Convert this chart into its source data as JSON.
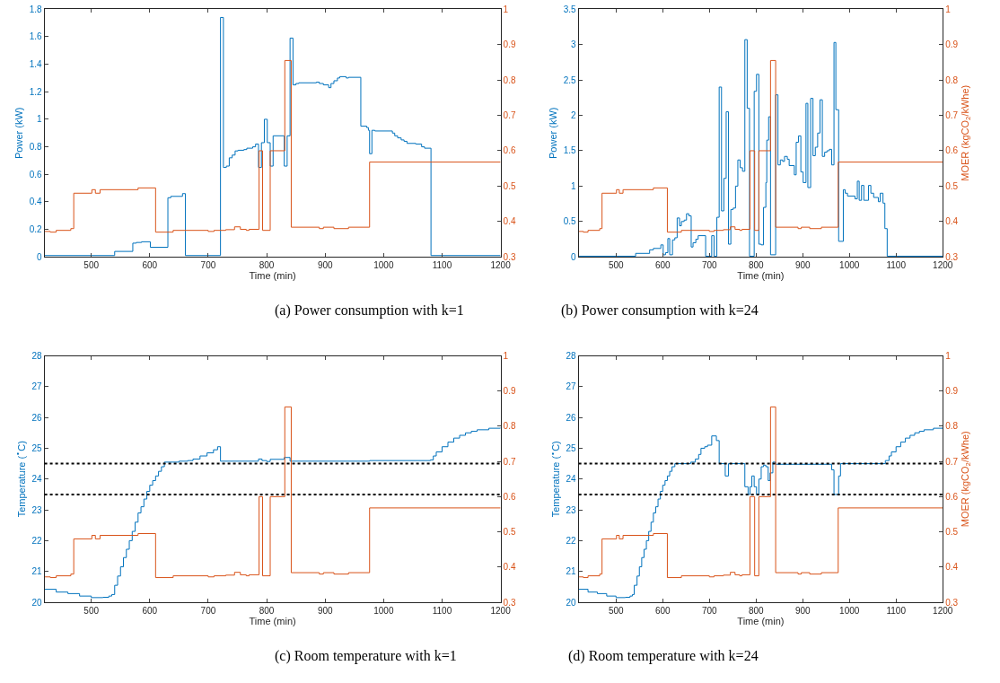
{
  "chart_data": [
    {
      "type": "step",
      "title": "(a) Power consumption with k=1",
      "xlabel": "Time (min)",
      "ylabel": "Power (kW)",
      "xlim": [
        420,
        1200
      ],
      "xticks": [
        500,
        600,
        700,
        800,
        900,
        1000,
        1100,
        1200
      ],
      "ylim": [
        0,
        1.8
      ],
      "yticks": [
        0,
        0.2,
        0.4,
        0.6,
        0.8,
        1,
        1.2,
        1.4,
        1.6,
        1.8
      ],
      "y2lim": [
        0.3,
        1
      ],
      "y2ticks": [
        0.3,
        0.4,
        0.5,
        0.6,
        0.7,
        0.8,
        0.9,
        1
      ],
      "series": [
        {
          "color": "#0072bd",
          "x": [
            420,
            540,
            571,
            577,
            586,
            601,
            631,
            636,
            656,
            661,
            721,
            726,
            731,
            736,
            741,
            746,
            751,
            761,
            766,
            776,
            781,
            786,
            791,
            796,
            801,
            806,
            811,
            830,
            835,
            840,
            845,
            850,
            855,
            885,
            890,
            897,
            906,
            910,
            915,
            921,
            925,
            936,
            940,
            961,
            971,
            974,
            976,
            980,
            985,
            1015,
            1019,
            1024,
            1030,
            1035,
            1040,
            1055,
            1065,
            1070,
            1081,
            1200
          ],
          "values": [
            0.01,
            0.04,
            0.1,
            0.105,
            0.11,
            0.07,
            0.43,
            0.44,
            0.46,
            0.01,
            1.74,
            0.65,
            0.66,
            0.72,
            0.74,
            0.77,
            0.775,
            0.78,
            0.79,
            0.8,
            0.82,
            0.65,
            0.83,
            1.0,
            0.83,
            0.66,
            0.88,
            0.66,
            0.88,
            1.59,
            1.25,
            1.26,
            1.265,
            1.27,
            1.26,
            1.25,
            1.23,
            1.26,
            1.28,
            1.3,
            1.31,
            1.3,
            1.305,
            0.95,
            0.94,
            0.92,
            0.75,
            0.92,
            0.915,
            0.9,
            0.88,
            0.865,
            0.85,
            0.84,
            0.825,
            0.82,
            0.8,
            0.79,
            0.01,
            0.01
          ]
        },
        {
          "color": "#d95319",
          "axis": "y2",
          "x": [
            420,
            430,
            440,
            465,
            470,
            501,
            507,
            515,
            580,
            610,
            640,
            700,
            710,
            730,
            745,
            755,
            765,
            770,
            787,
            793,
            806,
            831,
            842,
            890,
            897,
            915,
            940,
            976,
            1200
          ],
          "values": [
            0.372,
            0.37,
            0.375,
            0.38,
            0.48,
            0.49,
            0.48,
            0.49,
            0.495,
            0.37,
            0.375,
            0.372,
            0.375,
            0.377,
            0.385,
            0.378,
            0.375,
            0.378,
            0.6,
            0.375,
            0.6,
            0.855,
            0.384,
            0.38,
            0.384,
            0.38,
            0.384,
            0.568,
            0.568
          ]
        }
      ]
    },
    {
      "type": "step",
      "title": "(b) Power consumption with k=24",
      "xlabel": "Time (min)",
      "ylabel": "Power (kW)",
      "y2label": "MOER (kgCO$_{2}$/kWhe)",
      "xlim": [
        420,
        1200
      ],
      "xticks": [
        500,
        600,
        700,
        800,
        900,
        1000,
        1100,
        1200
      ],
      "ylim": [
        0,
        3.5
      ],
      "yticks": [
        0,
        0.5,
        1,
        1.5,
        2,
        2.5,
        3,
        3.5
      ],
      "y2lim": [
        0.3,
        1
      ],
      "y2ticks": [
        0.3,
        0.4,
        0.5,
        0.6,
        0.7,
        0.8,
        0.9,
        1
      ],
      "series": [
        {
          "color": "#0072bd",
          "x": [
            420,
            542,
            572,
            580,
            596,
            601,
            606,
            611,
            615,
            621,
            626,
            631,
            636,
            640,
            646,
            651,
            656,
            661,
            665,
            671,
            676,
            692,
            705,
            710,
            716,
            721,
            726,
            731,
            736,
            741,
            746,
            751,
            756,
            761,
            766,
            771,
            776,
            781,
            786,
            796,
            801,
            806,
            811,
            816,
            821,
            823,
            827,
            831,
            842,
            847,
            852,
            857,
            861,
            867,
            871,
            882,
            886,
            891,
            896,
            901,
            907,
            911,
            917,
            922,
            927,
            932,
            937,
            942,
            947,
            952,
            957,
            962,
            967,
            971,
            977,
            987,
            991,
            996,
            1012,
            1017,
            1021,
            1026,
            1031,
            1041,
            1046,
            1052,
            1062,
            1066,
            1072,
            1076,
            1081,
            1200
          ],
          "values": [
            0.01,
            0.05,
            0.1,
            0.12,
            0.17,
            0.03,
            0.06,
            0.26,
            0.03,
            0.24,
            0.27,
            0.55,
            0.44,
            0.5,
            0.52,
            0.61,
            0.58,
            0.14,
            0.2,
            0.25,
            0.3,
            0.01,
            0.3,
            0.01,
            0.56,
            2.4,
            0.65,
            1.11,
            2.05,
            0.18,
            0.67,
            0.69,
            1.0,
            1.37,
            1.26,
            1.21,
            3.07,
            2.1,
            0.01,
            2.34,
            2.58,
            0.18,
            0.17,
            0.7,
            1.05,
            1.65,
            1.98,
            0.03,
            2.29,
            1.3,
            1.37,
            1.35,
            1.42,
            1.38,
            1.29,
            1.16,
            1.62,
            1.71,
            1.2,
            1.05,
            2.17,
            0.98,
            2.24,
            1.43,
            1.55,
            1.75,
            2.22,
            1.42,
            1.48,
            1.5,
            1.52,
            1.3,
            3.03,
            2.08,
            0.22,
            0.95,
            0.9,
            0.86,
            0.82,
            1.07,
            0.8,
            1.01,
            0.8,
            1.01,
            0.9,
            0.84,
            0.78,
            0.9,
            0.76,
            0.4,
            0.01,
            0.01
          ]
        },
        {
          "color": "#d95319",
          "axis": "y2",
          "x": [
            420,
            430,
            440,
            465,
            470,
            501,
            507,
            515,
            580,
            610,
            640,
            700,
            710,
            730,
            745,
            755,
            765,
            770,
            787,
            797,
            806,
            831,
            842,
            890,
            897,
            915,
            940,
            976,
            1200
          ],
          "values": [
            0.372,
            0.37,
            0.375,
            0.38,
            0.48,
            0.49,
            0.48,
            0.49,
            0.495,
            0.37,
            0.375,
            0.372,
            0.375,
            0.377,
            0.385,
            0.378,
            0.375,
            0.378,
            0.6,
            0.375,
            0.6,
            0.855,
            0.384,
            0.38,
            0.384,
            0.38,
            0.384,
            0.568,
            0.568
          ]
        }
      ]
    },
    {
      "type": "step",
      "title": "(c) Room temperature with k=1",
      "xlabel": "Time (min)",
      "ylabel": "Temperature ($^{∘}$C)",
      "xlim": [
        420,
        1200
      ],
      "xticks": [
        500,
        600,
        700,
        800,
        900,
        1000,
        1100,
        1200
      ],
      "ylim": [
        20,
        28
      ],
      "yticks": [
        20,
        21,
        22,
        23,
        24,
        25,
        26,
        27,
        28
      ],
      "y2lim": [
        0.3,
        1
      ],
      "y2ticks": [
        0.3,
        0.4,
        0.5,
        0.6,
        0.7,
        0.8,
        0.9,
        1
      ],
      "ref_lines": [
        {
          "axis": "y",
          "value": 24.5,
          "color": "#000000",
          "line_style": "dotted"
        },
        {
          "axis": "y",
          "value": 23.5,
          "color": "#000000",
          "line_style": "dotted"
        }
      ],
      "series": [
        {
          "color": "#0072bd",
          "x": [
            420,
            440,
            460,
            480,
            500,
            520,
            530,
            535,
            540,
            545,
            550,
            555,
            560,
            565,
            570,
            575,
            580,
            585,
            590,
            595,
            600,
            605,
            610,
            615,
            620,
            625,
            650,
            665,
            674,
            686,
            698,
            709,
            716,
            721,
            786,
            792,
            800,
            806,
            830,
            840,
            976,
            1080,
            1085,
            1090,
            1100,
            1110,
            1120,
            1130,
            1140,
            1150,
            1160,
            1180,
            1200
          ],
          "values": [
            20.42,
            20.33,
            20.28,
            20.2,
            20.15,
            20.16,
            20.2,
            20.25,
            20.55,
            20.85,
            21.15,
            21.45,
            21.72,
            22.0,
            22.3,
            22.6,
            22.9,
            23.1,
            23.35,
            23.6,
            23.8,
            23.95,
            24.1,
            24.25,
            24.4,
            24.55,
            24.58,
            24.6,
            24.65,
            24.75,
            24.85,
            24.95,
            25.05,
            24.58,
            24.65,
            24.6,
            24.57,
            24.64,
            24.7,
            24.58,
            24.6,
            24.62,
            24.75,
            24.88,
            25.05,
            25.2,
            25.33,
            25.42,
            25.5,
            25.55,
            25.6,
            25.65,
            25.67
          ]
        },
        {
          "color": "#d95319",
          "axis": "y2",
          "x": [
            420,
            430,
            440,
            465,
            470,
            501,
            507,
            515,
            580,
            610,
            640,
            700,
            710,
            730,
            745,
            755,
            765,
            770,
            787,
            793,
            806,
            831,
            842,
            890,
            897,
            915,
            940,
            976,
            1200
          ],
          "values": [
            0.372,
            0.37,
            0.375,
            0.38,
            0.48,
            0.49,
            0.48,
            0.49,
            0.495,
            0.37,
            0.375,
            0.372,
            0.375,
            0.377,
            0.385,
            0.378,
            0.375,
            0.378,
            0.6,
            0.375,
            0.6,
            0.855,
            0.384,
            0.38,
            0.384,
            0.38,
            0.384,
            0.568,
            0.568
          ]
        }
      ]
    },
    {
      "type": "step",
      "title": "(d) Room temperature with k=24",
      "xlabel": "Time (min)",
      "ylabel": "Temperature ($^{∘}$C)",
      "y2label": "MOER (kgCO$_{2}$/kWhe)",
      "xlim": [
        420,
        1200
      ],
      "xticks": [
        500,
        600,
        700,
        800,
        900,
        1000,
        1100,
        1200
      ],
      "ylim": [
        20,
        28
      ],
      "yticks": [
        20,
        21,
        22,
        23,
        24,
        25,
        26,
        27,
        28
      ],
      "y2lim": [
        0.3,
        1
      ],
      "y2ticks": [
        0.3,
        0.4,
        0.5,
        0.6,
        0.7,
        0.8,
        0.9,
        1
      ],
      "ref_lines": [
        {
          "axis": "y",
          "value": 24.5,
          "color": "#000000",
          "line_style": "dotted"
        },
        {
          "axis": "y",
          "value": 23.5,
          "color": "#000000",
          "line_style": "dotted"
        }
      ],
      "series": [
        {
          "color": "#0072bd",
          "x": [
            420,
            440,
            460,
            480,
            500,
            520,
            530,
            535,
            539,
            545,
            550,
            555,
            560,
            565,
            570,
            575,
            580,
            585,
            590,
            595,
            600,
            605,
            610,
            615,
            620,
            626,
            660,
            670,
            677,
            682,
            690,
            696,
            705,
            715,
            721,
            734,
            741,
            776,
            783,
            787,
            791,
            796,
            801,
            806,
            811,
            816,
            821,
            826,
            830,
            836,
            842,
            962,
            967,
            977,
            981,
            1077,
            1085,
            1090,
            1100,
            1110,
            1120,
            1130,
            1140,
            1150,
            1160,
            1180,
            1200
          ],
          "values": [
            20.42,
            20.33,
            20.28,
            20.2,
            20.15,
            20.16,
            20.2,
            20.25,
            20.55,
            20.85,
            21.15,
            21.45,
            21.72,
            22.0,
            22.3,
            22.6,
            22.9,
            23.1,
            23.35,
            23.6,
            23.8,
            23.95,
            24.1,
            24.25,
            24.4,
            24.5,
            24.55,
            24.65,
            24.8,
            25.0,
            25.05,
            25.1,
            25.4,
            25.25,
            24.5,
            24.1,
            24.5,
            23.75,
            23.5,
            23.75,
            24.1,
            23.75,
            23.5,
            24.0,
            24.4,
            24.45,
            24.4,
            23.95,
            24.2,
            24.55,
            24.48,
            24.3,
            23.5,
            24.1,
            24.5,
            24.6,
            24.75,
            24.88,
            25.05,
            25.2,
            25.33,
            25.42,
            25.5,
            25.55,
            25.6,
            25.65,
            25.67
          ]
        },
        {
          "color": "#d95319",
          "axis": "y2",
          "x": [
            420,
            430,
            440,
            465,
            470,
            501,
            507,
            515,
            580,
            610,
            640,
            700,
            710,
            730,
            745,
            755,
            765,
            770,
            787,
            797,
            806,
            831,
            842,
            890,
            897,
            915,
            940,
            976,
            1200
          ],
          "values": [
            0.372,
            0.37,
            0.375,
            0.38,
            0.48,
            0.49,
            0.48,
            0.49,
            0.495,
            0.37,
            0.375,
            0.372,
            0.375,
            0.377,
            0.385,
            0.378,
            0.375,
            0.378,
            0.6,
            0.375,
            0.6,
            0.855,
            0.384,
            0.38,
            0.384,
            0.38,
            0.384,
            0.568,
            0.568
          ]
        }
      ]
    }
  ]
}
